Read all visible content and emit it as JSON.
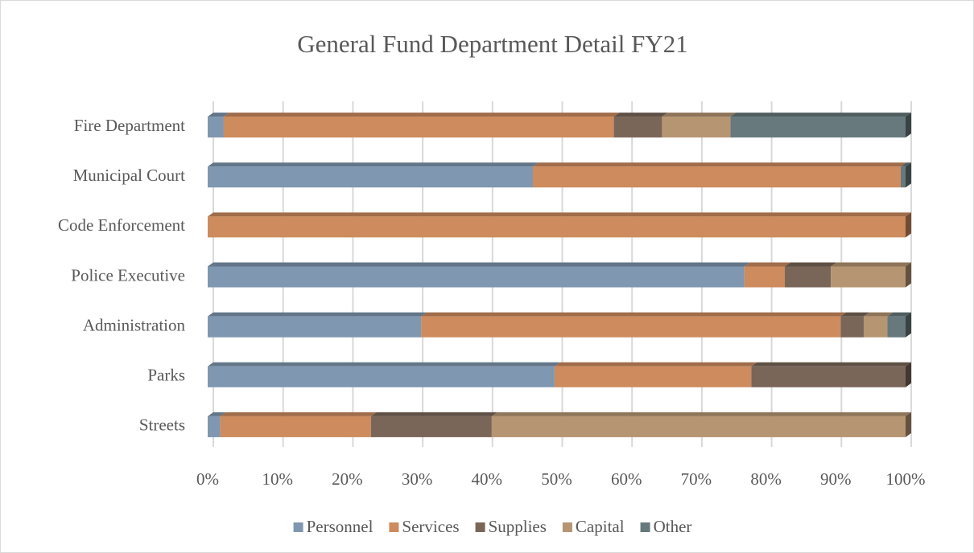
{
  "chart_data": {
    "type": "bar",
    "orientation": "horizontal",
    "stacked": "percent",
    "title": "General Fund Department Detail FY21",
    "categories": [
      "Fire Department",
      "Municipal Court",
      "Code Enforcement",
      "Police Executive",
      "Administration",
      "Parks",
      "Streets"
    ],
    "series": [
      {
        "name": "Personnel",
        "color": "#7f97b0",
        "values": [
          2.3,
          46.6,
          0,
          76.9,
          30.6,
          49.7,
          1.8
        ]
      },
      {
        "name": "Services",
        "color": "#cd8b5e",
        "values": [
          55.9,
          52.7,
          100,
          5.8,
          60.1,
          28.2,
          21.6
        ]
      },
      {
        "name": "Supplies",
        "color": "#7a6659",
        "values": [
          6.9,
          0,
          0,
          6.6,
          3.3,
          22.1,
          17.3
        ]
      },
      {
        "name": "Capital",
        "color": "#b69572",
        "values": [
          9.8,
          0,
          0,
          10.7,
          3.4,
          0,
          59.3
        ]
      },
      {
        "name": "Other",
        "color": "#67797c",
        "values": [
          25.1,
          0.7,
          0,
          0,
          2.6,
          0,
          0
        ]
      }
    ],
    "xlim": [
      0,
      100
    ],
    "xticks": [
      {
        "value": 0,
        "label": "0%"
      },
      {
        "value": 10,
        "label": "10%"
      },
      {
        "value": 20,
        "label": "20%"
      },
      {
        "value": 30,
        "label": "30%"
      },
      {
        "value": 40,
        "label": "40%"
      },
      {
        "value": 50,
        "label": "50%"
      },
      {
        "value": 60,
        "label": "60%"
      },
      {
        "value": 70,
        "label": "70%"
      },
      {
        "value": 80,
        "label": "80%"
      },
      {
        "value": 90,
        "label": "90%"
      },
      {
        "value": 100,
        "label": "100%"
      }
    ],
    "grid": true,
    "legend": "bottom"
  }
}
